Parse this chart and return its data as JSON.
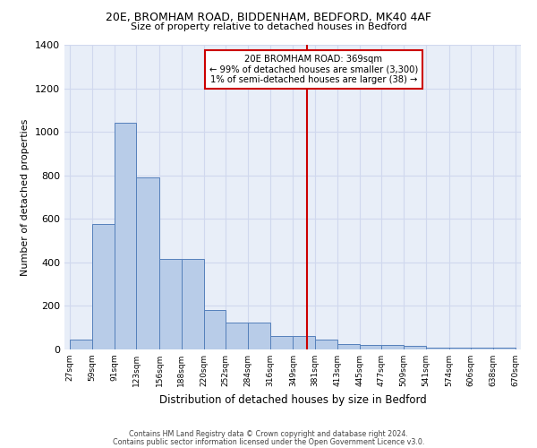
{
  "title1": "20E, BROMHAM ROAD, BIDDENHAM, BEDFORD, MK40 4AF",
  "title2": "Size of property relative to detached houses in Bedford",
  "xlabel": "Distribution of detached houses by size in Bedford",
  "ylabel": "Number of detached properties",
  "bg_color": "#e8eef8",
  "bar_color": "#b8cce8",
  "bar_edge_color": "#5580bb",
  "grid_color": "#d0d8ee",
  "bin_edges": [
    27,
    59,
    91,
    123,
    156,
    188,
    220,
    252,
    284,
    316,
    349,
    381,
    413,
    445,
    477,
    509,
    541,
    574,
    606,
    638,
    670
  ],
  "bar_heights": [
    47,
    575,
    1040,
    790,
    415,
    415,
    180,
    125,
    125,
    60,
    60,
    47,
    25,
    20,
    20,
    15,
    10,
    10,
    10,
    10
  ],
  "vline_x": 369,
  "vline_color": "#cc0000",
  "annotation_text": "20E BROMHAM ROAD: 369sqm\n← 99% of detached houses are smaller (3,300)\n1% of semi-detached houses are larger (38) →",
  "annotation_box_color": "#cc0000",
  "ylim": [
    0,
    1400
  ],
  "yticks": [
    0,
    200,
    400,
    600,
    800,
    1000,
    1200,
    1400
  ],
  "footnote1": "Contains HM Land Registry data © Crown copyright and database right 2024.",
  "footnote2": "Contains public sector information licensed under the Open Government Licence v3.0."
}
